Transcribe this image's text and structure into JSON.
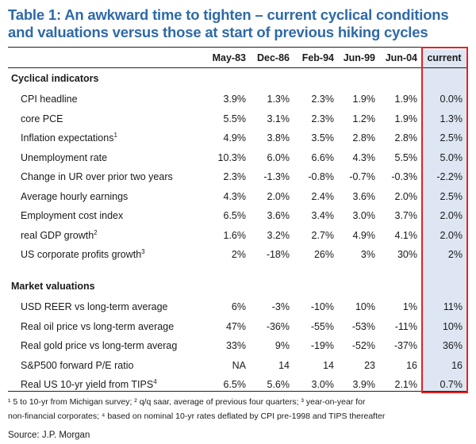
{
  "title": {
    "line1": "Table 1: An awkward time to tighten – current cyclical conditions",
    "line2": "and valuations versus those at start of previous hiking cycles"
  },
  "columns": [
    "May-83",
    "Dec-86",
    "Feb-94",
    "Jun-99",
    "Jun-04",
    "current"
  ],
  "sections": [
    {
      "name": "Cyclical indicators",
      "rows": [
        {
          "label": "CPI headline",
          "sup": "",
          "values": [
            "3.9%",
            "1.3%",
            "2.3%",
            "1.9%",
            "1.9%",
            "0.0%"
          ]
        },
        {
          "label": "core PCE",
          "sup": "",
          "values": [
            "5.5%",
            "3.1%",
            "2.3%",
            "1.2%",
            "1.9%",
            "1.3%"
          ]
        },
        {
          "label": "Inflation expectations",
          "sup": "1",
          "values": [
            "4.9%",
            "3.8%",
            "3.5%",
            "2.8%",
            "2.8%",
            "2.5%"
          ]
        },
        {
          "label": "Unemployment rate",
          "sup": "",
          "values": [
            "10.3%",
            "6.0%",
            "6.6%",
            "4.3%",
            "5.5%",
            "5.0%"
          ]
        },
        {
          "label": "Change in UR over prior two years",
          "sup": "",
          "values": [
            "2.3%",
            "-1.3%",
            "-0.8%",
            "-0.7%",
            "-0.3%",
            "-2.2%"
          ]
        },
        {
          "label": "Average hourly earnings",
          "sup": "",
          "values": [
            "4.3%",
            "2.0%",
            "2.4%",
            "3.6%",
            "2.0%",
            "2.5%"
          ]
        },
        {
          "label": "Employment cost index",
          "sup": "",
          "values": [
            "6.5%",
            "3.6%",
            "3.4%",
            "3.0%",
            "3.7%",
            "2.0%"
          ]
        },
        {
          "label": "real GDP growth",
          "sup": "2",
          "values": [
            "1.6%",
            "3.2%",
            "2.7%",
            "4.9%",
            "4.1%",
            "2.0%"
          ]
        },
        {
          "label": "US corporate profits growth",
          "sup": "3",
          "values": [
            "2%",
            "-18%",
            "26%",
            "3%",
            "30%",
            "2%"
          ]
        }
      ]
    },
    {
      "name": "Market valuations",
      "rows": [
        {
          "label": "USD REER vs long-term average",
          "sup": "",
          "values": [
            "6%",
            "-3%",
            "-10%",
            "10%",
            "1%",
            "11%"
          ]
        },
        {
          "label": "Real oil price vs long-term average",
          "sup": "",
          "values": [
            "47%",
            "-36%",
            "-55%",
            "-53%",
            "-11%",
            "10%"
          ]
        },
        {
          "label": "Real gold price vs long-term averag",
          "sup": "",
          "values": [
            "33%",
            "9%",
            "-19%",
            "-52%",
            "-37%",
            "36%"
          ]
        },
        {
          "label": "S&P500 forward P/E ratio",
          "sup": "",
          "values": [
            "NA",
            "14",
            "14",
            "23",
            "16",
            "16"
          ]
        },
        {
          "label": "Real US 10-yr yield from TIPS",
          "sup": "4",
          "values": [
            "6.5%",
            "5.6%",
            "3.0%",
            "3.9%",
            "2.1%",
            "0.7%"
          ]
        }
      ]
    }
  ],
  "footnotes": {
    "line1": "¹ 5 to 10-yr from Michigan survey; ² q/q saar, average of previous four quarters; ³ year-on-year for",
    "line2": "non-financial corporates; ⁴ based on nominal 10-yr rates deflated by CPI pre-1998 and TIPS thereafter"
  },
  "source": "Source: J.P. Morgan"
}
